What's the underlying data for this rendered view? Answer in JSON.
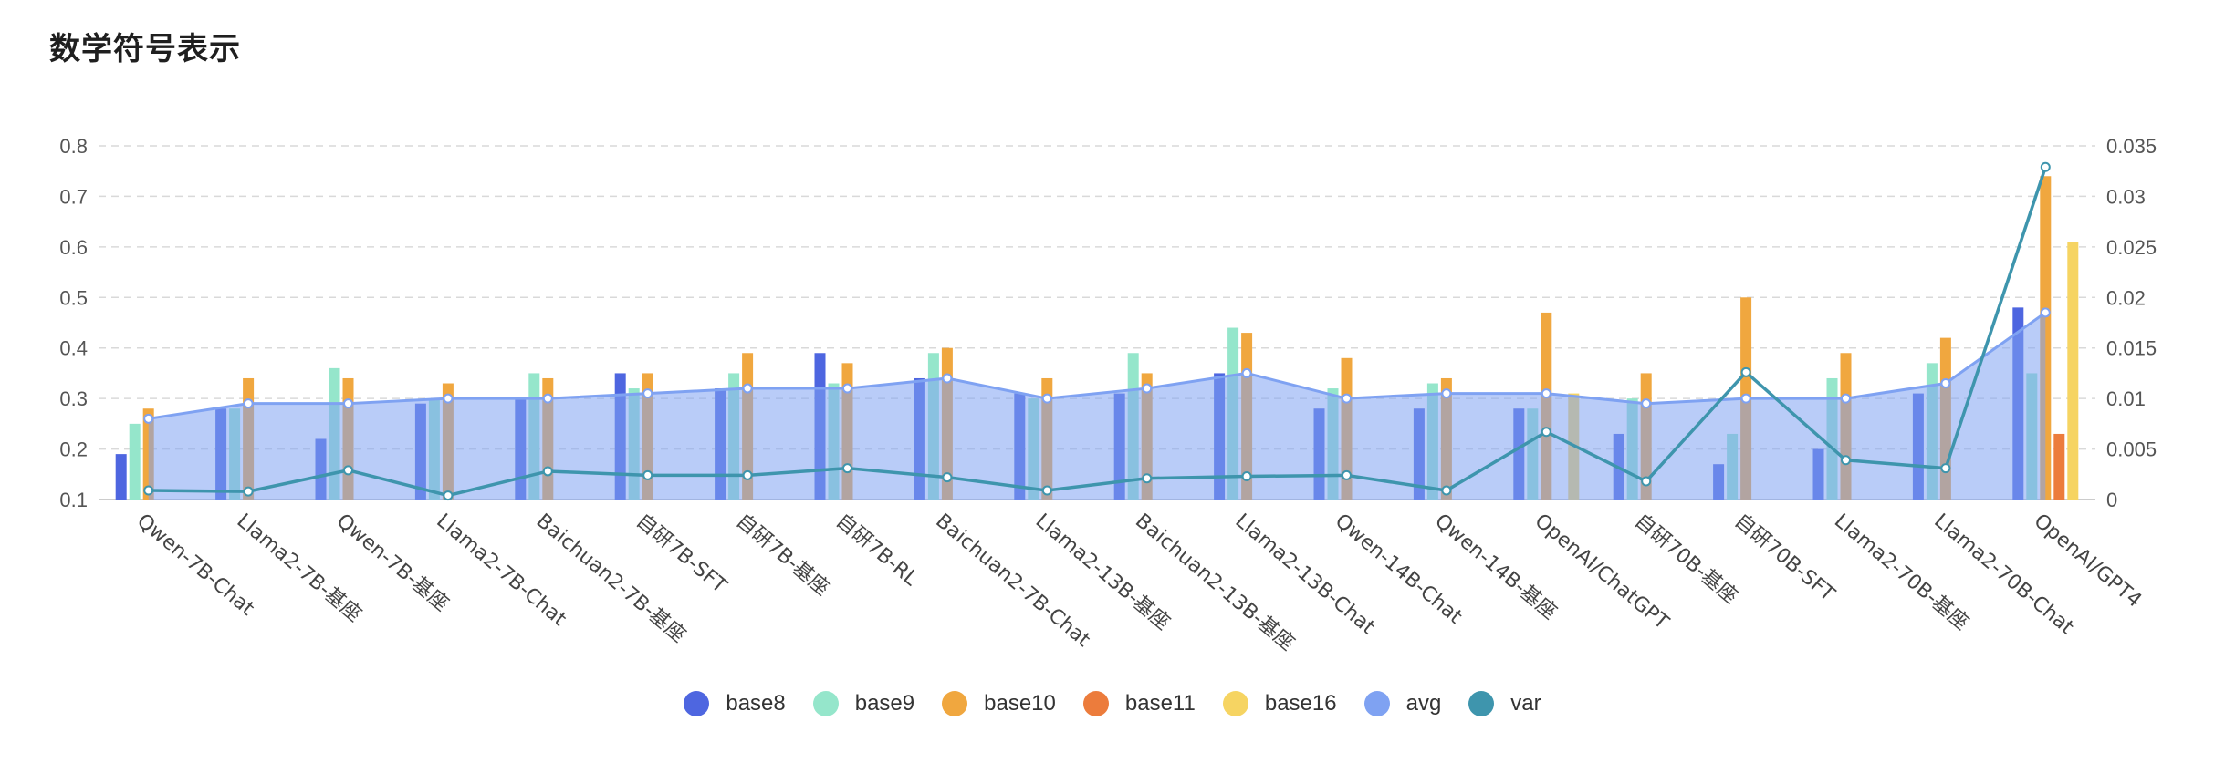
{
  "title": "数学符号表示",
  "chart_data": {
    "type": "bar",
    "title": "数学符号表示",
    "categories": [
      "Qwen-7B-Chat",
      "Llama2-7B-基座",
      "Qwen-7B-基座",
      "Llama2-7B-Chat",
      "Baichuan2-7B-基座",
      "自研7B-SFT",
      "自研7B-基座",
      "自研7B-RL",
      "Baichuan2-7B-Chat",
      "Llama2-13B-基座",
      "Baichuan2-13B-基座",
      "Llama2-13B-Chat",
      "Qwen-14B-Chat",
      "Qwen-14B-基座",
      "OpenAI/ChatGPT",
      "自研70B-基座",
      "自研70B-SFT",
      "Llama2-70B-基座",
      "Llama2-70B-Chat",
      "OpenAI/GPT4"
    ],
    "y_left": {
      "ylim": [
        0.1,
        0.8
      ],
      "ticks": [
        0.1,
        0.2,
        0.3,
        0.4,
        0.5,
        0.6,
        0.7,
        0.8
      ]
    },
    "y_right": {
      "ylim": [
        0,
        0.035
      ],
      "ticks": [
        0,
        0.005,
        0.01,
        0.015,
        0.02,
        0.025,
        0.03,
        0.035
      ]
    },
    "grid": true,
    "legend_position": "bottom",
    "series": [
      {
        "name": "base8",
        "type": "bar",
        "color": "#4e66e0",
        "values": [
          0.19,
          0.28,
          0.22,
          0.29,
          0.3,
          0.35,
          0.32,
          0.39,
          0.34,
          0.31,
          0.31,
          0.35,
          0.28,
          0.28,
          0.28,
          0.23,
          0.17,
          0.2,
          0.31,
          0.48
        ]
      },
      {
        "name": "base9",
        "type": "bar",
        "color": "#95e6cb",
        "values": [
          0.25,
          0.28,
          0.36,
          0.3,
          0.35,
          0.32,
          0.35,
          0.33,
          0.39,
          0.3,
          0.39,
          0.44,
          0.32,
          0.33,
          0.28,
          0.3,
          0.23,
          0.34,
          0.37,
          0.35
        ]
      },
      {
        "name": "base10",
        "type": "bar",
        "color": "#f0a73f",
        "values": [
          0.28,
          0.34,
          0.34,
          0.33,
          0.34,
          0.35,
          0.39,
          0.37,
          0.4,
          0.34,
          0.35,
          0.43,
          0.38,
          0.34,
          0.47,
          0.35,
          0.5,
          0.39,
          0.42,
          0.74
        ]
      },
      {
        "name": "base11",
        "type": "bar",
        "color": "#ec7c3c",
        "values": [
          null,
          null,
          null,
          null,
          null,
          null,
          null,
          null,
          null,
          null,
          null,
          null,
          null,
          null,
          null,
          null,
          null,
          null,
          null,
          0.23
        ]
      },
      {
        "name": "base16",
        "type": "bar",
        "color": "#f6d462",
        "values": [
          null,
          null,
          null,
          null,
          null,
          null,
          null,
          null,
          null,
          null,
          null,
          null,
          null,
          null,
          0.31,
          null,
          null,
          null,
          null,
          0.61
        ]
      },
      {
        "name": "avg",
        "type": "area",
        "color": "#7fa2f2",
        "values": [
          0.26,
          0.29,
          0.29,
          0.3,
          0.3,
          0.31,
          0.32,
          0.32,
          0.34,
          0.3,
          0.32,
          0.35,
          0.3,
          0.31,
          0.31,
          0.29,
          0.3,
          0.3,
          0.33,
          0.47
        ]
      },
      {
        "name": "var",
        "type": "line",
        "axis": "right",
        "color": "#3e95ad",
        "values": [
          0.0009,
          0.0008,
          0.0029,
          0.0004,
          0.0028,
          0.0024,
          0.0024,
          0.0031,
          0.0022,
          0.0009,
          0.0021,
          0.0023,
          0.0024,
          0.0009,
          0.0067,
          0.0018,
          0.0126,
          0.0039,
          0.0031,
          0.0329
        ]
      }
    ]
  }
}
